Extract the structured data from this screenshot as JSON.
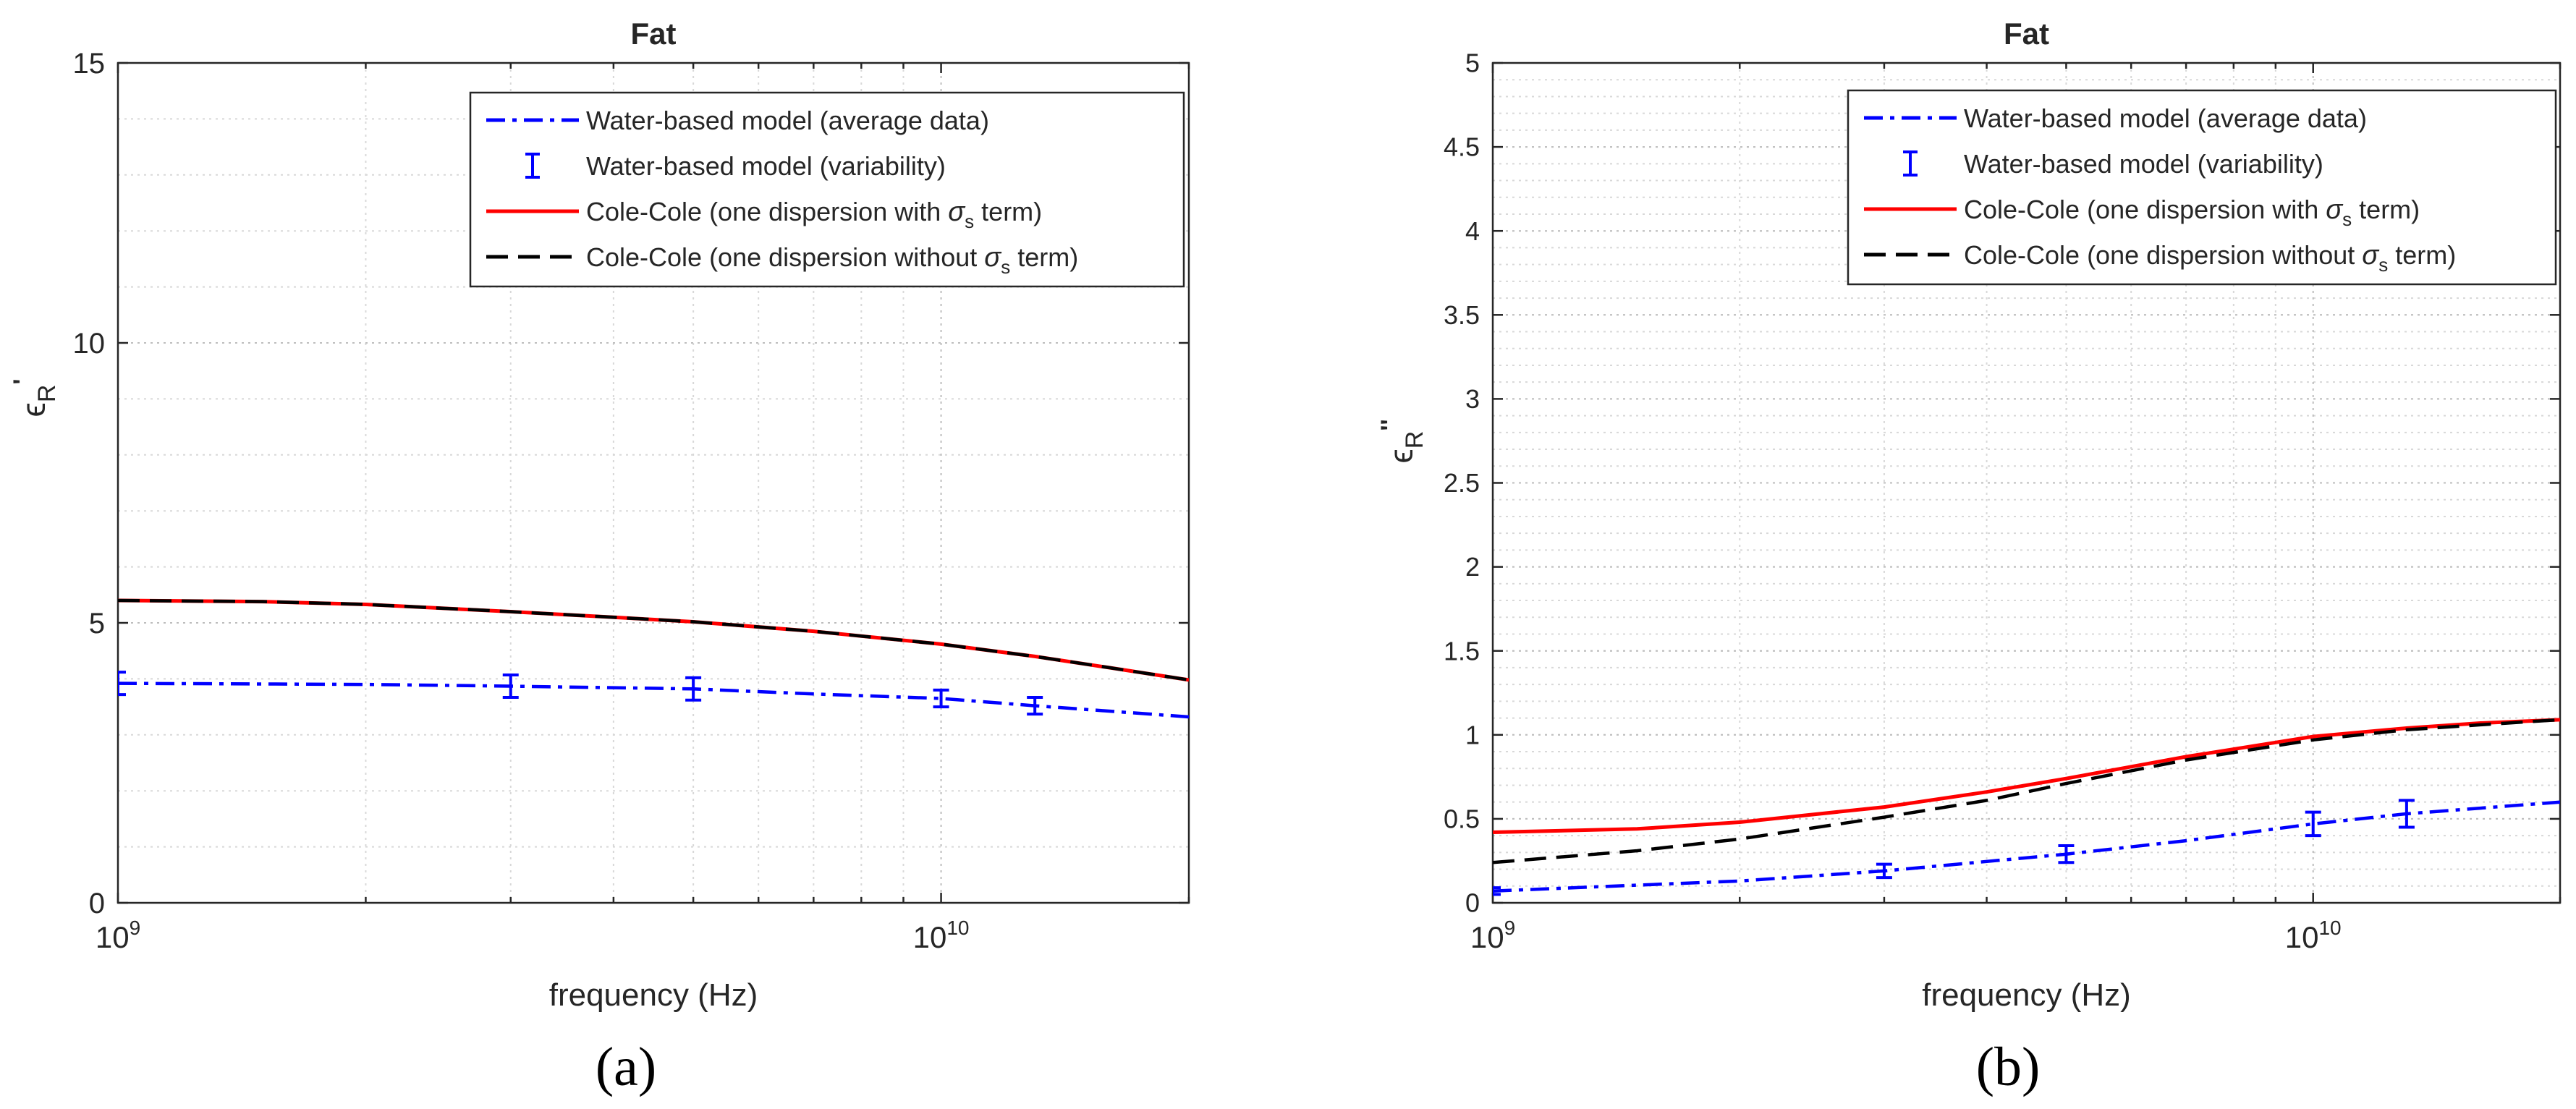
{
  "chart_data": [
    {
      "type": "line",
      "panel_label": "(a)",
      "title": "Fat",
      "xlabel": "frequency (Hz)",
      "ylabel": "ϵR'",
      "ylabel_base": "ϵ",
      "ylabel_sub": "R",
      "ylabel_sup": "'",
      "xscale": "log",
      "xlim": [
        1000000000,
        20000000000
      ],
      "ylim": [
        0,
        15
      ],
      "grid": true,
      "minor_grid": true,
      "legend_position": "top-right",
      "x_ticks": [
        {
          "value": 1000000000,
          "base": "10",
          "exp": "9"
        },
        {
          "value": 10000000000,
          "base": "10",
          "exp": "10"
        }
      ],
      "y_ticks": [
        {
          "value": 0,
          "label": "0"
        },
        {
          "value": 5,
          "label": "5"
        },
        {
          "value": 10,
          "label": "10"
        },
        {
          "value": 15,
          "label": "15"
        }
      ],
      "series": [
        {
          "name": "Water-based model (average data)",
          "legend_parts": [
            "Water-based model (average data)"
          ],
          "style": "dashdot",
          "color": "#0000ff",
          "x": [
            1000000000,
            2000000000,
            3000000000,
            5000000000,
            7000000000,
            10000000000,
            13000000000,
            20000000000
          ],
          "y": [
            3.92,
            3.9,
            3.87,
            3.82,
            3.73,
            3.65,
            3.52,
            3.32
          ]
        },
        {
          "name": "Water-based model (variability)",
          "legend_parts": [
            "Water-based model (variability)"
          ],
          "style": "errorbar",
          "color": "#0000ff",
          "x": [
            1000000000,
            3000000000,
            5000000000,
            10000000000,
            13000000000
          ],
          "y": [
            3.92,
            3.87,
            3.82,
            3.65,
            3.52
          ],
          "err": [
            0.2,
            0.2,
            0.2,
            0.15,
            0.15
          ]
        },
        {
          "name": "Cole-Cole (one dispersion with σs term)",
          "legend_parts": [
            "Cole-Cole (one dispersion with ",
            "σ",
            "s",
            " term)"
          ],
          "style": "solid",
          "color": "#ff0000",
          "x": [
            1000000000,
            1500000000,
            2000000000,
            3000000000,
            4000000000,
            5000000000,
            7000000000,
            10000000000,
            13000000000,
            16000000000,
            20000000000
          ],
          "y": [
            5.4,
            5.38,
            5.33,
            5.2,
            5.1,
            5.02,
            4.85,
            4.62,
            4.4,
            4.2,
            3.98
          ]
        },
        {
          "name": "Cole-Cole (one dispersion without σs term)",
          "legend_parts": [
            "Cole-Cole (one dispersion without ",
            "σ",
            "s",
            " term)"
          ],
          "style": "dashed",
          "color": "#000000",
          "x": [
            1000000000,
            1500000000,
            2000000000,
            3000000000,
            4000000000,
            5000000000,
            7000000000,
            10000000000,
            13000000000,
            16000000000,
            20000000000
          ],
          "y": [
            5.4,
            5.38,
            5.33,
            5.2,
            5.1,
            5.02,
            4.85,
            4.62,
            4.4,
            4.2,
            3.98
          ]
        }
      ]
    },
    {
      "type": "line",
      "panel_label": "(b)",
      "title": "Fat",
      "xlabel": "frequency (Hz)",
      "ylabel": "ϵR''",
      "ylabel_base": "ϵ",
      "ylabel_sub": "R",
      "ylabel_sup": "''",
      "xscale": "log",
      "xlim": [
        1000000000,
        20000000000
      ],
      "ylim": [
        0,
        5
      ],
      "grid": true,
      "minor_grid": true,
      "legend_position": "top-right",
      "x_ticks": [
        {
          "value": 1000000000,
          "base": "10",
          "exp": "9"
        },
        {
          "value": 10000000000,
          "base": "10",
          "exp": "10"
        }
      ],
      "y_ticks": [
        {
          "value": 0,
          "label": "0"
        },
        {
          "value": 0.5,
          "label": "0.5"
        },
        {
          "value": 1,
          "label": "1"
        },
        {
          "value": 1.5,
          "label": "1.5"
        },
        {
          "value": 2,
          "label": "2"
        },
        {
          "value": 2.5,
          "label": "2.5"
        },
        {
          "value": 3,
          "label": "3"
        },
        {
          "value": 3.5,
          "label": "3.5"
        },
        {
          "value": 4,
          "label": "4"
        },
        {
          "value": 4.5,
          "label": "4.5"
        },
        {
          "value": 5,
          "label": "5"
        }
      ],
      "series": [
        {
          "name": "Water-based model (average data)",
          "legend_parts": [
            "Water-based model (average data)"
          ],
          "style": "dashdot",
          "color": "#0000ff",
          "x": [
            1000000000,
            2000000000,
            3000000000,
            5000000000,
            7000000000,
            10000000000,
            13000000000,
            20000000000
          ],
          "y": [
            0.07,
            0.13,
            0.19,
            0.29,
            0.37,
            0.47,
            0.53,
            0.6
          ]
        },
        {
          "name": "Water-based model (variability)",
          "legend_parts": [
            "Water-based model (variability)"
          ],
          "style": "errorbar",
          "color": "#0000ff",
          "x": [
            1000000000,
            3000000000,
            5000000000,
            10000000000,
            13000000000
          ],
          "y": [
            0.07,
            0.19,
            0.29,
            0.47,
            0.53
          ],
          "err": [
            0.02,
            0.04,
            0.05,
            0.07,
            0.08
          ]
        },
        {
          "name": "Cole-Cole (one dispersion with σs term)",
          "legend_parts": [
            "Cole-Cole (one dispersion with ",
            "σ",
            "s",
            " term)"
          ],
          "style": "solid",
          "color": "#ff0000",
          "x": [
            1000000000,
            1500000000,
            2000000000,
            3000000000,
            4000000000,
            5000000000,
            7000000000,
            10000000000,
            13000000000,
            16000000000,
            20000000000
          ],
          "y": [
            0.42,
            0.44,
            0.48,
            0.57,
            0.66,
            0.74,
            0.87,
            0.99,
            1.04,
            1.07,
            1.09
          ]
        },
        {
          "name": "Cole-Cole (one dispersion without σs term)",
          "legend_parts": [
            "Cole-Cole (one dispersion without ",
            "σ",
            "s",
            " term)"
          ],
          "style": "dashed",
          "color": "#000000",
          "x": [
            1000000000,
            1500000000,
            2000000000,
            3000000000,
            4000000000,
            5000000000,
            7000000000,
            10000000000,
            13000000000,
            16000000000,
            20000000000
          ],
          "y": [
            0.24,
            0.31,
            0.38,
            0.51,
            0.61,
            0.71,
            0.85,
            0.97,
            1.03,
            1.06,
            1.09
          ]
        }
      ]
    }
  ]
}
